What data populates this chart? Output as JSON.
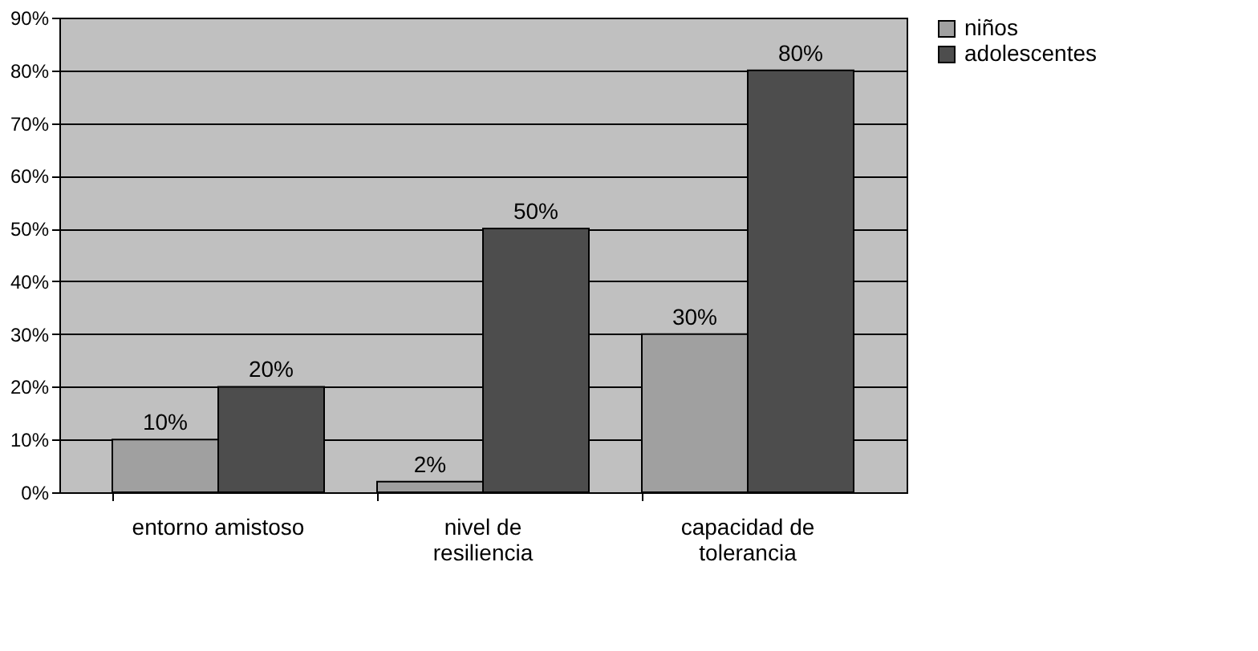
{
  "chart_data": {
    "type": "bar",
    "categories": [
      "entorno amistoso",
      "nivel de resiliencia",
      "capacidad de tolerancia"
    ],
    "series": [
      {
        "name": "niños",
        "color": "#a0a0a0",
        "values": [
          10,
          2,
          30
        ],
        "value_labels": [
          "10%",
          "2%",
          "30%"
        ]
      },
      {
        "name": "adolescentes",
        "color": "#4d4d4d",
        "values": [
          20,
          50,
          80
        ],
        "value_labels": [
          "20%",
          "50%",
          "80%"
        ]
      }
    ],
    "ylim": [
      0,
      90
    ],
    "yticks": [
      {
        "value": 0,
        "label": "0%"
      },
      {
        "value": 10,
        "label": "10%"
      },
      {
        "value": 20,
        "label": "20%"
      },
      {
        "value": 30,
        "label": "30%"
      },
      {
        "value": 40,
        "label": "40%"
      },
      {
        "value": 50,
        "label": "50%"
      },
      {
        "value": 60,
        "label": "60%"
      },
      {
        "value": 70,
        "label": "70%"
      },
      {
        "value": 80,
        "label": "80%"
      },
      {
        "value": 90,
        "label": "90%"
      }
    ],
    "grid": "y",
    "legend": "right"
  }
}
